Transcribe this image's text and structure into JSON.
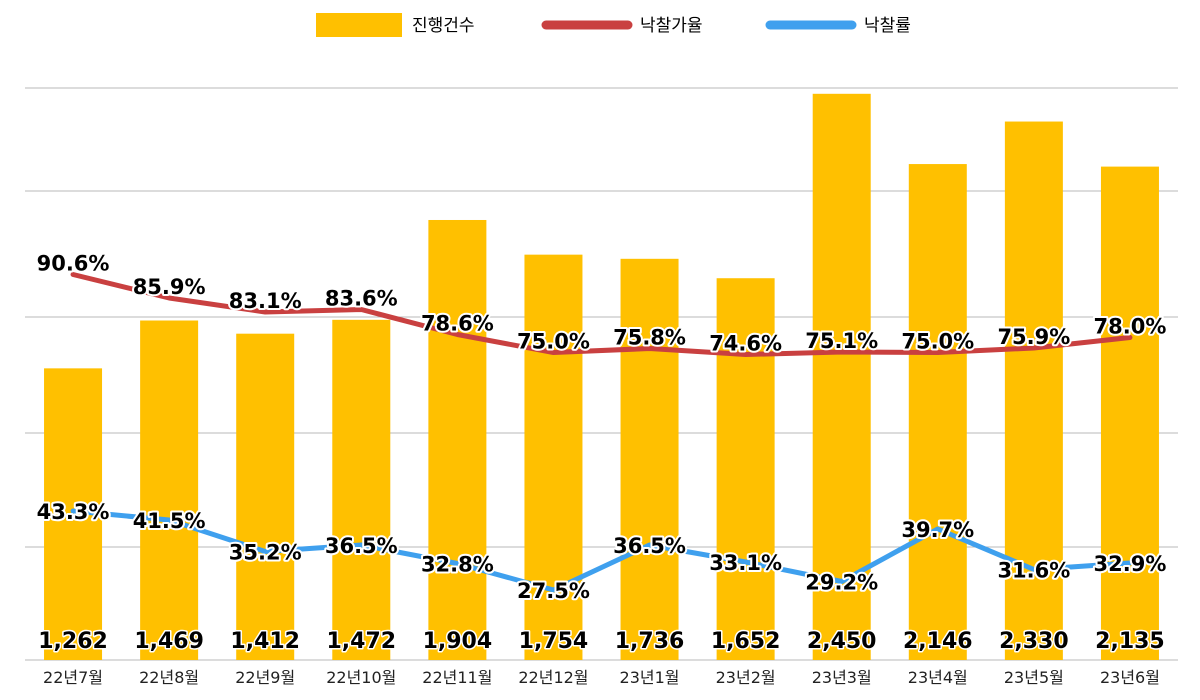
{
  "chart_data": {
    "type": "bar",
    "categories": [
      "22년7월",
      "22년8월",
      "22년9월",
      "22년10월",
      "22년11월",
      "22년12월",
      "23년1월",
      "23년2월",
      "23년3월",
      "23년4월",
      "23년5월",
      "23년6월"
    ],
    "series": [
      {
        "name": "진행건수",
        "type": "bar",
        "color": "#FFC000",
        "values": [
          1262,
          1469,
          1412,
          1472,
          1904,
          1754,
          1736,
          1652,
          2450,
          2146,
          2330,
          2135
        ],
        "labels": [
          "1,262",
          "1,469",
          "1,412",
          "1,472",
          "1,904",
          "1,754",
          "1,736",
          "1,652",
          "2,450",
          "2,146",
          "2,330",
          "2,135"
        ]
      },
      {
        "name": "낙찰가율",
        "type": "line",
        "color": "#C94040",
        "values": [
          90.6,
          85.9,
          83.1,
          83.6,
          78.6,
          75.0,
          75.8,
          74.6,
          75.1,
          75.0,
          75.9,
          78.0
        ],
        "labels": [
          "90.6%",
          "85.9%",
          "83.1%",
          "83.6%",
          "78.6%",
          "75.0%",
          "75.8%",
          "74.6%",
          "75.1%",
          "75.0%",
          "75.9%",
          "78.0%"
        ]
      },
      {
        "name": "낙찰률",
        "type": "line",
        "color": "#3FA0EE",
        "values": [
          43.3,
          41.5,
          35.2,
          36.5,
          32.8,
          27.5,
          36.5,
          33.1,
          29.2,
          39.7,
          31.6,
          32.9
        ],
        "labels": [
          "43.3%",
          "41.5%",
          "35.2%",
          "36.5%",
          "32.8%",
          "27.5%",
          "36.5%",
          "33.1%",
          "29.2%",
          "39.7%",
          "31.6%",
          "32.9%"
        ]
      }
    ],
    "legend_position": "top-center",
    "grid": true
  }
}
